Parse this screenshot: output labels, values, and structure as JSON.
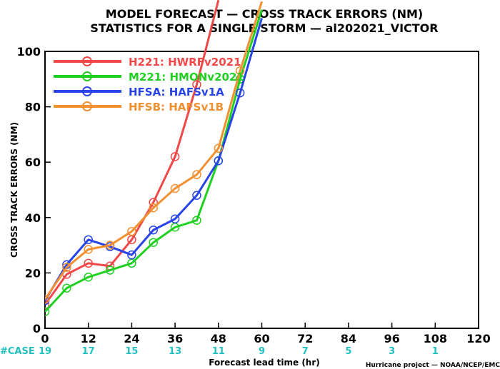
{
  "title_line1": "MODEL FORECAST — CROSS TRACK ERRORS (NM)",
  "title_line2": "STATISTICS FOR A SINGLE STORM — al202021_VICTOR",
  "credit": "Hurricane project — NOAA/NCEP/EMC",
  "case_label": "#CASE",
  "case_color": "#20c0c0",
  "cases": [
    {
      "x": 0,
      "n": "19"
    },
    {
      "x": 12,
      "n": "17"
    },
    {
      "x": 24,
      "n": "15"
    },
    {
      "x": 36,
      "n": "13"
    },
    {
      "x": 48,
      "n": "11"
    },
    {
      "x": 60,
      "n": "9"
    },
    {
      "x": 72,
      "n": "7"
    },
    {
      "x": 84,
      "n": "5"
    },
    {
      "x": 96,
      "n": "3"
    },
    {
      "x": 108,
      "n": "1"
    }
  ],
  "chart_data": {
    "type": "line",
    "title": "MODEL FORECAST — CROSS TRACK ERRORS (NM)",
    "subtitle": "STATISTICS FOR A SINGLE STORM — al202021_VICTOR",
    "xlabel": "Forecast lead time (hr)",
    "ylabel": "CROSS TRACK ERRORS (NM)",
    "xlim": [
      0,
      120
    ],
    "ylim": [
      0,
      100
    ],
    "xticks": [
      0,
      12,
      24,
      36,
      48,
      60,
      72,
      84,
      96,
      108,
      120
    ],
    "yticks": [
      0,
      20,
      40,
      60,
      80,
      100
    ],
    "grid": false,
    "legend_position": "top-left",
    "series": [
      {
        "name": "H221: HWRFv2021",
        "color": "#f04848",
        "x": [
          0,
          6,
          12,
          18,
          24,
          30,
          36,
          42,
          48
        ],
        "y": [
          8.5,
          19.5,
          23.5,
          22.5,
          32,
          45.5,
          62,
          88,
          118.5
        ]
      },
      {
        "name": "M221: HMONv2021",
        "color": "#20d020",
        "x": [
          0,
          6,
          12,
          18,
          24,
          30,
          36,
          42,
          48,
          54,
          60
        ],
        "y": [
          6,
          14.5,
          18.5,
          21,
          23.5,
          31,
          36.5,
          39,
          60.5,
          90,
          115
        ]
      },
      {
        "name": "HFSA: HAFSv1A",
        "color": "#2844e8",
        "x": [
          0,
          6,
          12,
          18,
          24,
          30,
          36,
          42,
          48,
          54,
          60
        ],
        "y": [
          10,
          23,
          32,
          29.5,
          26.5,
          35.5,
          39.5,
          48,
          60.5,
          85,
          112
        ]
      },
      {
        "name": "HFSB: HAFSv1B",
        "color": "#f09030",
        "x": [
          0,
          6,
          12,
          18,
          24,
          30,
          36,
          42,
          48,
          54,
          60
        ],
        "y": [
          10.5,
          22,
          28.5,
          30,
          35,
          43.5,
          50.5,
          55.5,
          65,
          93,
          118
        ]
      }
    ]
  }
}
